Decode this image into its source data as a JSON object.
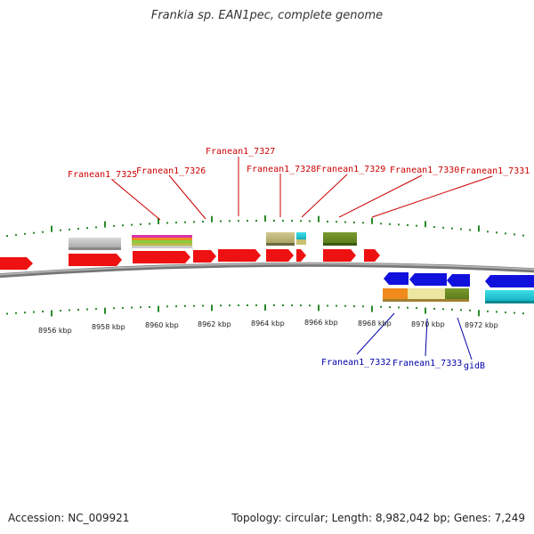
{
  "title": "Frankia sp. EAN1pec, complete genome",
  "colors": {
    "forward_label": "#cc0000",
    "reverse_label": "#0000aa",
    "tick": "#2a8a2a",
    "backbone": "#888888",
    "gene_red": "#ee1111",
    "gene_blue": "#1111dd"
  },
  "forward_labels": [
    "Franean1_7325",
    "Franean1_7326",
    "Franean1_7327",
    "Franean1_7328",
    "Franean1_7329",
    "Franean1_7330",
    "Franean1_7331"
  ],
  "reverse_labels": [
    "Franean1_7332",
    "Franean1_7333",
    "gidB"
  ],
  "scale_labels": [
    "8956 kbp",
    "8958 kbp",
    "8960 kbp",
    "8962 kbp",
    "8964 kbp",
    "8966 kbp",
    "8968 kbp",
    "8970 kbp",
    "8972 kbp"
  ],
  "footer": {
    "accession": "Accession: NC_009921",
    "summary": "Topology: circular; Length: 8,982,042 bp; Genes: 7,249"
  }
}
